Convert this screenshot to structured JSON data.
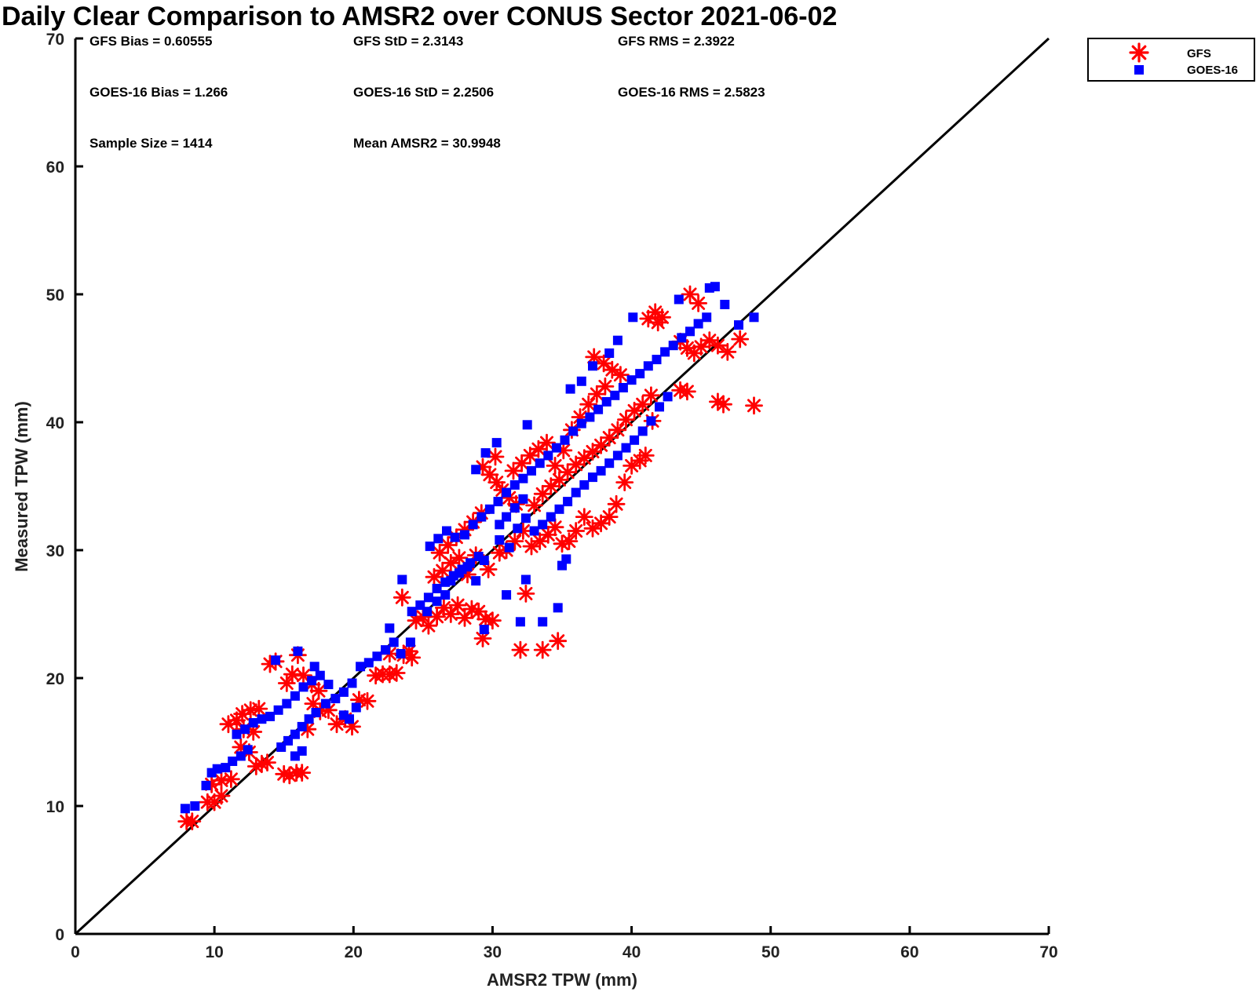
{
  "chart_data": {
    "type": "scatter",
    "title": "Daily Clear Comparison to AMSR2 over CONUS Sector 2021-06-02",
    "xlabel": "AMSR2 TPW (mm)",
    "ylabel": "Measured TPW (mm)",
    "xlim": [
      0,
      70
    ],
    "ylim": [
      0,
      70
    ],
    "xticks": [
      "0",
      "10",
      "20",
      "30",
      "40",
      "50",
      "60",
      "70"
    ],
    "yticks": [
      "0",
      "10",
      "20",
      "30",
      "40",
      "50",
      "60",
      "70"
    ],
    "grid": false,
    "legend_position": "top-right, outside plot",
    "reference_line": {
      "type": "one-to-one",
      "x": [
        0,
        70
      ],
      "y": [
        0,
        70
      ]
    },
    "stats": {
      "gfs_bias": "GFS Bias = 0.60555",
      "gfs_std": "GFS StD = 2.3143",
      "gfs_rms": "GFS RMS = 2.3922",
      "goes_bias": "GOES-16 Bias = 1.266",
      "goes_std": "GOES-16 StD = 2.2506",
      "goes_rms": "GOES-16 RMS = 2.5823",
      "sample_size": "Sample Size = 1414",
      "mean_amsr2": "Mean AMSR2 = 30.9948"
    },
    "series": [
      {
        "name": "GFS",
        "marker": "asterisk",
        "color": "#ff0000",
        "points": [
          [
            8.0,
            8.8
          ],
          [
            8.4,
            8.8
          ],
          [
            9.5,
            10.3
          ],
          [
            10.0,
            10.3
          ],
          [
            10.5,
            10.8
          ],
          [
            9.8,
            11.7
          ],
          [
            10.5,
            12.0
          ],
          [
            11.2,
            12.1
          ],
          [
            11.0,
            16.4
          ],
          [
            11.6,
            16.7
          ],
          [
            12.0,
            17.2
          ],
          [
            12.6,
            17.5
          ],
          [
            13.2,
            17.6
          ],
          [
            12.1,
            16.0
          ],
          [
            12.8,
            15.8
          ],
          [
            11.9,
            14.6
          ],
          [
            12.5,
            14.2
          ],
          [
            13.4,
            13.3
          ],
          [
            13.0,
            13.1
          ],
          [
            13.8,
            13.4
          ],
          [
            14.0,
            21.1
          ],
          [
            14.4,
            21.3
          ],
          [
            15.2,
            19.6
          ],
          [
            15.6,
            20.3
          ],
          [
            16.0,
            21.8
          ],
          [
            16.4,
            20.2
          ],
          [
            15.0,
            12.5
          ],
          [
            15.4,
            12.4
          ],
          [
            15.9,
            12.6
          ],
          [
            16.3,
            12.6
          ],
          [
            16.7,
            16.0
          ],
          [
            17.0,
            19.5
          ],
          [
            17.5,
            19.0
          ],
          [
            17.1,
            18.0
          ],
          [
            17.6,
            17.4
          ],
          [
            18.2,
            17.5
          ],
          [
            18.8,
            16.4
          ],
          [
            19.4,
            16.8
          ],
          [
            19.9,
            16.2
          ],
          [
            20.4,
            18.3
          ],
          [
            21.0,
            18.2
          ],
          [
            21.6,
            20.2
          ],
          [
            22.1,
            20.3
          ],
          [
            22.6,
            20.3
          ],
          [
            23.1,
            20.4
          ],
          [
            22.6,
            21.9
          ],
          [
            23.6,
            21.8
          ],
          [
            24.0,
            22.1
          ],
          [
            24.2,
            21.6
          ],
          [
            23.5,
            26.3
          ],
          [
            24.5,
            24.5
          ],
          [
            25.0,
            24.8
          ],
          [
            25.4,
            24.1
          ],
          [
            26.0,
            24.8
          ],
          [
            26.5,
            25.5
          ],
          [
            27.0,
            25.0
          ],
          [
            27.5,
            25.7
          ],
          [
            28.0,
            24.7
          ],
          [
            28.5,
            25.4
          ],
          [
            29.0,
            25.2
          ],
          [
            29.5,
            24.6
          ],
          [
            30.0,
            24.5
          ],
          [
            29.3,
            23.1
          ],
          [
            29.7,
            28.5
          ],
          [
            29.3,
            36.5
          ],
          [
            29.8,
            35.9
          ],
          [
            30.3,
            35.3
          ],
          [
            30.2,
            37.3
          ],
          [
            30.7,
            34.7
          ],
          [
            31.2,
            34.1
          ],
          [
            31.7,
            33.6
          ],
          [
            30.5,
            29.8
          ],
          [
            31.0,
            30.0
          ],
          [
            31.6,
            30.7
          ],
          [
            32.2,
            31.5
          ],
          [
            32.8,
            30.3
          ],
          [
            33.4,
            30.7
          ],
          [
            34.0,
            31.2
          ],
          [
            34.5,
            31.8
          ],
          [
            35.0,
            30.5
          ],
          [
            35.5,
            30.7
          ],
          [
            36.0,
            31.5
          ],
          [
            36.6,
            32.6
          ],
          [
            37.2,
            31.7
          ],
          [
            37.8,
            32.1
          ],
          [
            38.4,
            32.6
          ],
          [
            38.9,
            33.6
          ],
          [
            39.5,
            35.3
          ],
          [
            40.0,
            36.6
          ],
          [
            40.6,
            37.0
          ],
          [
            41.0,
            37.4
          ],
          [
            41.5,
            40.1
          ],
          [
            32.0,
            22.2
          ],
          [
            33.6,
            22.2
          ],
          [
            34.7,
            22.9
          ],
          [
            32.4,
            26.6
          ],
          [
            37.3,
            45.1
          ],
          [
            38.0,
            44.6
          ],
          [
            38.6,
            44.1
          ],
          [
            39.2,
            43.7
          ],
          [
            41.2,
            48.1
          ],
          [
            41.7,
            48.6
          ],
          [
            42.2,
            48.2
          ],
          [
            41.9,
            47.8
          ],
          [
            44.2,
            50.0
          ],
          [
            44.8,
            49.3
          ],
          [
            43.5,
            46.3
          ],
          [
            44.0,
            45.8
          ],
          [
            44.5,
            45.4
          ],
          [
            45.0,
            45.9
          ],
          [
            45.6,
            46.4
          ],
          [
            46.2,
            46.0
          ],
          [
            43.5,
            42.5
          ],
          [
            44.0,
            42.4
          ],
          [
            46.2,
            41.6
          ],
          [
            46.6,
            41.4
          ],
          [
            48.8,
            41.3
          ],
          [
            46.9,
            45.5
          ],
          [
            47.8,
            46.5
          ],
          [
            31.5,
            36.2
          ],
          [
            32.1,
            36.8
          ],
          [
            32.7,
            37.4
          ],
          [
            33.3,
            37.9
          ],
          [
            33.9,
            38.4
          ],
          [
            34.5,
            36.6
          ],
          [
            35.1,
            37.8
          ],
          [
            35.7,
            39.4
          ],
          [
            36.3,
            40.4
          ],
          [
            36.9,
            41.4
          ],
          [
            37.5,
            42.2
          ],
          [
            38.1,
            42.8
          ],
          [
            33.0,
            33.5
          ],
          [
            33.6,
            34.4
          ],
          [
            34.2,
            35.0
          ],
          [
            34.8,
            35.5
          ],
          [
            35.4,
            36.1
          ],
          [
            36.0,
            36.7
          ],
          [
            36.6,
            37.2
          ],
          [
            37.2,
            37.7
          ],
          [
            37.8,
            38.2
          ],
          [
            38.4,
            38.8
          ],
          [
            39.0,
            39.4
          ],
          [
            39.6,
            40.2
          ],
          [
            40.2,
            40.9
          ],
          [
            40.8,
            41.4
          ],
          [
            41.4,
            42.1
          ],
          [
            26.2,
            29.8
          ],
          [
            26.8,
            30.4
          ],
          [
            27.4,
            31.0
          ],
          [
            28.0,
            31.6
          ],
          [
            28.6,
            32.2
          ],
          [
            29.2,
            32.9
          ],
          [
            25.8,
            27.9
          ],
          [
            26.4,
            28.4
          ],
          [
            27.0,
            29.0
          ],
          [
            27.6,
            29.4
          ],
          [
            28.2,
            28.1
          ],
          [
            28.8,
            29.6
          ]
        ]
      },
      {
        "name": "GOES-16",
        "marker": "square",
        "color": "#0000ff",
        "points": [
          [
            7.9,
            9.8
          ],
          [
            8.6,
            10.0
          ],
          [
            9.4,
            11.6
          ],
          [
            9.8,
            12.6
          ],
          [
            10.2,
            12.9
          ],
          [
            10.8,
            13.0
          ],
          [
            11.3,
            13.5
          ],
          [
            11.9,
            13.9
          ],
          [
            12.4,
            14.4
          ],
          [
            11.6,
            15.6
          ],
          [
            12.2,
            16.0
          ],
          [
            12.8,
            16.5
          ],
          [
            13.4,
            16.8
          ],
          [
            14.0,
            17.0
          ],
          [
            14.6,
            17.5
          ],
          [
            15.2,
            18.0
          ],
          [
            15.8,
            18.6
          ],
          [
            16.4,
            19.3
          ],
          [
            17.0,
            19.8
          ],
          [
            17.6,
            20.2
          ],
          [
            18.2,
            19.5
          ],
          [
            14.4,
            21.4
          ],
          [
            16.0,
            22.1
          ],
          [
            17.2,
            20.9
          ],
          [
            14.8,
            14.6
          ],
          [
            15.3,
            15.1
          ],
          [
            15.8,
            15.6
          ],
          [
            16.3,
            16.2
          ],
          [
            16.8,
            16.8
          ],
          [
            17.3,
            17.3
          ],
          [
            18.0,
            18.0
          ],
          [
            18.7,
            18.4
          ],
          [
            19.3,
            18.9
          ],
          [
            19.9,
            19.6
          ],
          [
            20.5,
            20.9
          ],
          [
            21.1,
            21.2
          ],
          [
            21.7,
            21.7
          ],
          [
            22.3,
            22.2
          ],
          [
            22.9,
            22.8
          ],
          [
            22.6,
            23.9
          ],
          [
            23.4,
            21.9
          ],
          [
            24.1,
            22.8
          ],
          [
            19.3,
            17.1
          ],
          [
            19.7,
            16.8
          ],
          [
            20.2,
            17.7
          ],
          [
            15.8,
            13.9
          ],
          [
            16.3,
            14.3
          ],
          [
            23.5,
            27.7
          ],
          [
            24.2,
            25.2
          ],
          [
            24.8,
            25.7
          ],
          [
            25.4,
            26.3
          ],
          [
            26.0,
            27.0
          ],
          [
            26.6,
            27.5
          ],
          [
            27.2,
            28.0
          ],
          [
            27.8,
            28.5
          ],
          [
            28.4,
            29.0
          ],
          [
            29.0,
            29.5
          ],
          [
            25.5,
            30.3
          ],
          [
            26.1,
            30.9
          ],
          [
            26.7,
            31.5
          ],
          [
            27.3,
            31.0
          ],
          [
            28.0,
            31.2
          ],
          [
            28.6,
            32.0
          ],
          [
            29.2,
            32.6
          ],
          [
            29.8,
            33.2
          ],
          [
            30.4,
            33.8
          ],
          [
            31.0,
            34.5
          ],
          [
            31.6,
            35.1
          ],
          [
            32.2,
            35.6
          ],
          [
            32.8,
            36.2
          ],
          [
            33.4,
            36.8
          ],
          [
            34.0,
            37.4
          ],
          [
            34.6,
            38.0
          ],
          [
            35.2,
            38.6
          ],
          [
            35.8,
            39.3
          ],
          [
            36.4,
            39.9
          ],
          [
            37.0,
            40.4
          ],
          [
            37.6,
            41.0
          ],
          [
            38.2,
            41.6
          ],
          [
            38.8,
            42.1
          ],
          [
            39.4,
            42.7
          ],
          [
            40.0,
            43.3
          ],
          [
            40.6,
            43.8
          ],
          [
            41.2,
            44.4
          ],
          [
            41.8,
            44.9
          ],
          [
            42.4,
            45.5
          ],
          [
            43.0,
            46.0
          ],
          [
            43.6,
            46.6
          ],
          [
            44.2,
            47.1
          ],
          [
            44.8,
            47.7
          ],
          [
            45.4,
            48.2
          ],
          [
            43.4,
            49.6
          ],
          [
            45.6,
            50.5
          ],
          [
            46.0,
            50.6
          ],
          [
            46.7,
            49.2
          ],
          [
            48.8,
            48.2
          ],
          [
            47.7,
            47.6
          ],
          [
            30.3,
            38.4
          ],
          [
            29.5,
            37.6
          ],
          [
            28.8,
            36.3
          ],
          [
            32.5,
            39.8
          ],
          [
            35.6,
            42.6
          ],
          [
            36.4,
            43.2
          ],
          [
            37.2,
            44.4
          ],
          [
            38.4,
            45.4
          ],
          [
            39.0,
            46.4
          ],
          [
            40.1,
            48.2
          ],
          [
            32.0,
            24.4
          ],
          [
            33.6,
            24.4
          ],
          [
            34.7,
            25.5
          ],
          [
            32.4,
            27.7
          ],
          [
            29.4,
            23.8
          ],
          [
            31.0,
            26.5
          ],
          [
            35.3,
            29.3
          ],
          [
            35.0,
            28.8
          ],
          [
            33.0,
            31.5
          ],
          [
            33.6,
            32.0
          ],
          [
            34.2,
            32.6
          ],
          [
            34.8,
            33.2
          ],
          [
            35.4,
            33.8
          ],
          [
            36.0,
            34.5
          ],
          [
            36.6,
            35.1
          ],
          [
            37.2,
            35.7
          ],
          [
            37.8,
            36.2
          ],
          [
            38.4,
            36.8
          ],
          [
            39.0,
            37.4
          ],
          [
            39.6,
            38.0
          ],
          [
            40.2,
            38.6
          ],
          [
            40.8,
            39.3
          ],
          [
            41.4,
            40.1
          ],
          [
            42.0,
            41.2
          ],
          [
            42.6,
            42.0
          ],
          [
            30.5,
            32.0
          ],
          [
            31.0,
            32.6
          ],
          [
            31.6,
            33.3
          ],
          [
            32.2,
            34.0
          ],
          [
            27.0,
            27.6
          ],
          [
            27.6,
            28.2
          ],
          [
            28.2,
            28.7
          ],
          [
            28.8,
            27.6
          ],
          [
            29.4,
            29.2
          ],
          [
            26.0,
            26.0
          ],
          [
            26.6,
            26.5
          ],
          [
            25.3,
            25.2
          ],
          [
            30.5,
            30.8
          ],
          [
            31.2,
            30.2
          ],
          [
            31.8,
            31.7
          ],
          [
            32.4,
            32.5
          ]
        ]
      }
    ]
  },
  "legend": {
    "items": [
      {
        "label": "GFS",
        "color": "#ff0000",
        "marker": "asterisk"
      },
      {
        "label": "GOES-16",
        "color": "#0000ff",
        "marker": "square"
      }
    ]
  }
}
